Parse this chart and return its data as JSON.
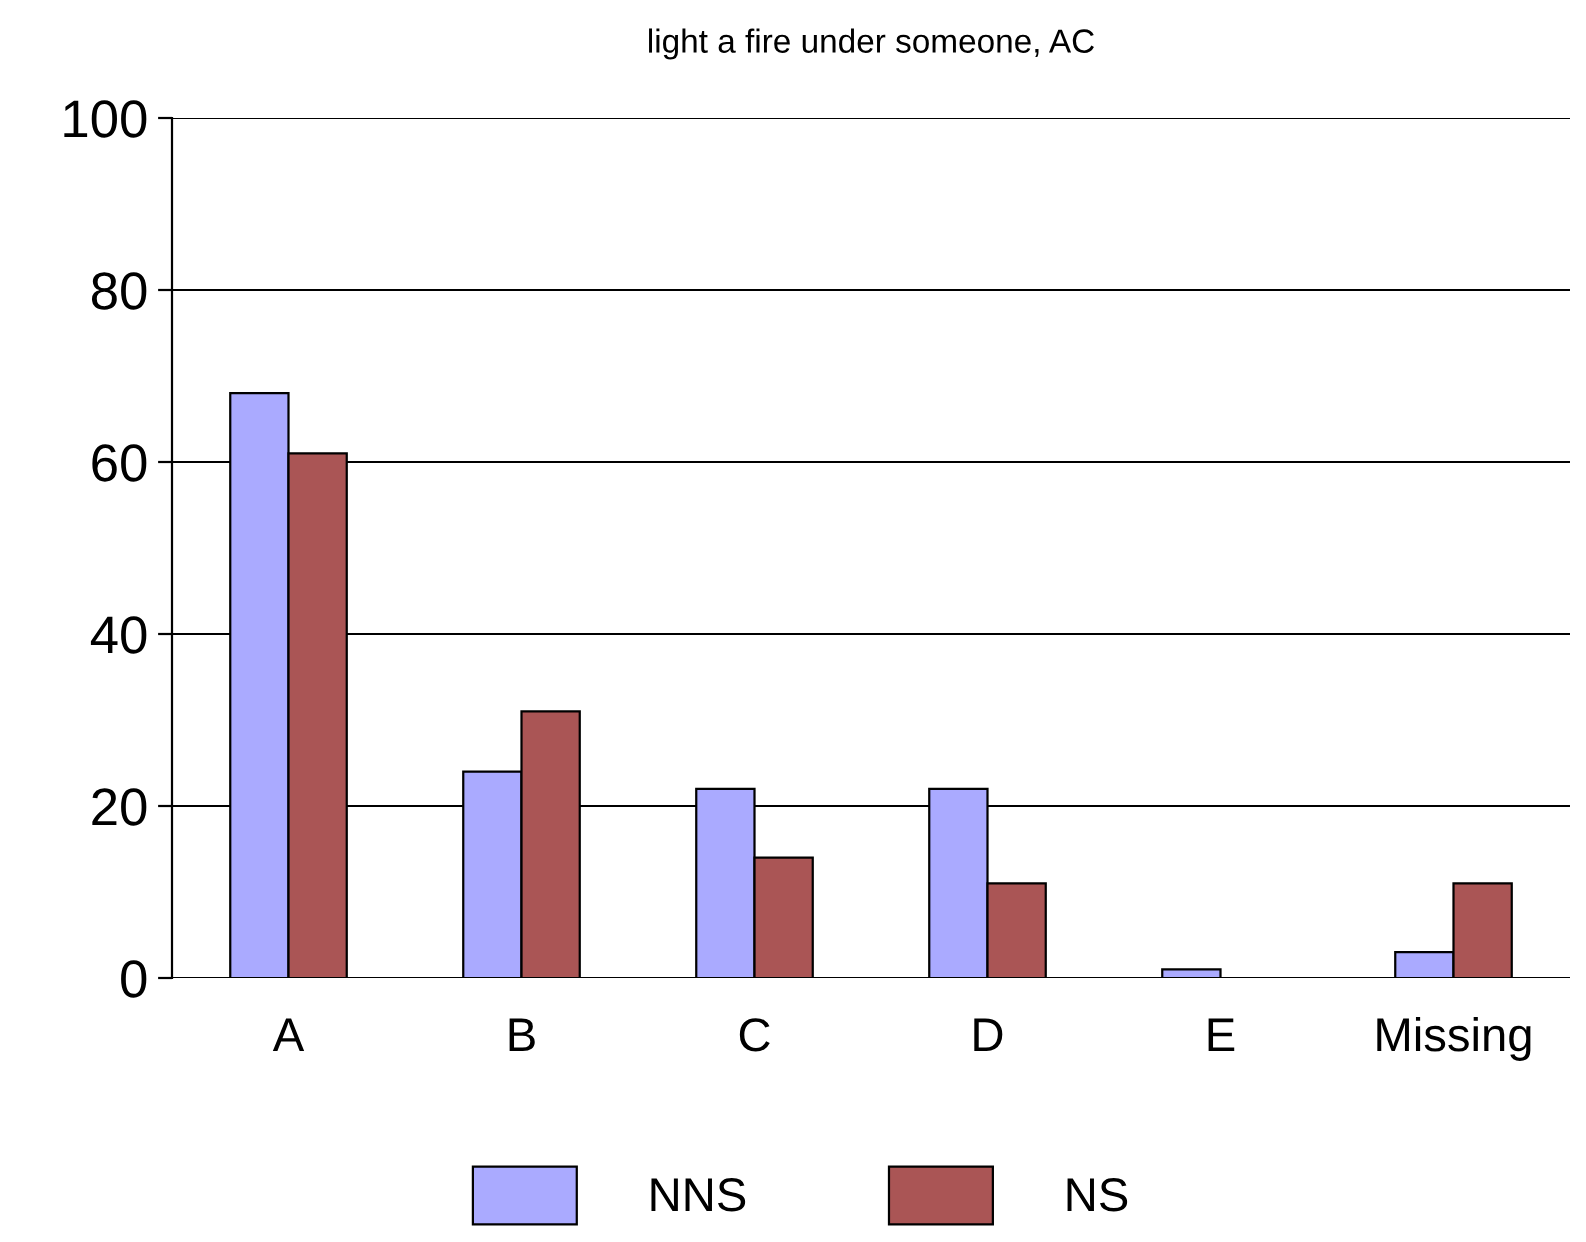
{
  "chart_data": {
    "type": "bar",
    "title": "light a fire under someone, AC",
    "categories": [
      "A",
      "B",
      "C",
      "D",
      "E",
      "Missing"
    ],
    "series": [
      {
        "name": "NNS",
        "color": "#aaaaff",
        "values": [
          68,
          24,
          22,
          22,
          1,
          3
        ]
      },
      {
        "name": "NS",
        "color": "#aa5555",
        "values": [
          61,
          31,
          14,
          11,
          null,
          11
        ]
      }
    ],
    "ylim": [
      0,
      100
    ],
    "yticks": [
      0,
      20,
      40,
      60,
      80,
      100
    ],
    "grid": "y",
    "legend": "bottom"
  }
}
